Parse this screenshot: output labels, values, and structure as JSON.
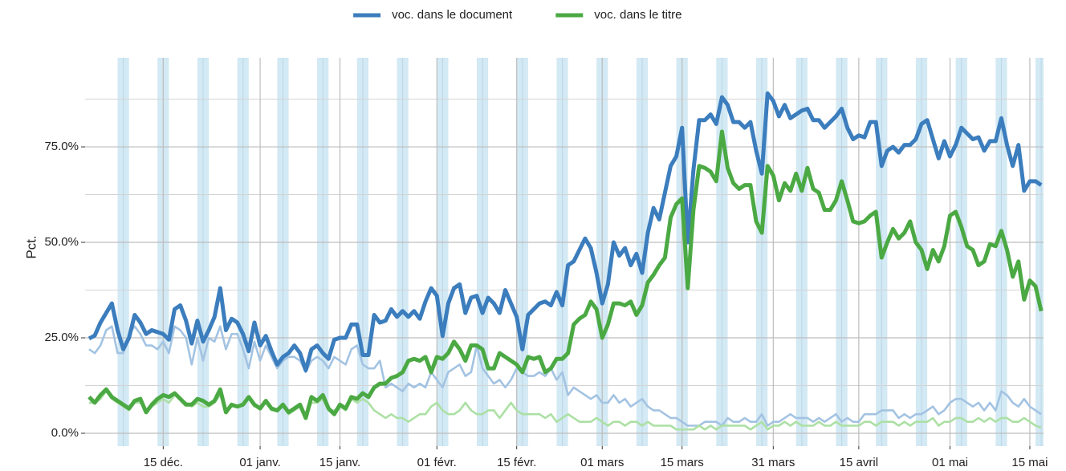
{
  "chart_data": {
    "type": "line",
    "x": [
      1,
      2,
      3,
      4,
      5,
      6,
      7,
      8,
      9,
      10,
      11,
      12,
      13,
      14,
      15,
      16,
      17,
      18,
      19,
      20,
      21,
      22,
      23,
      24,
      25,
      26,
      27,
      28,
      29,
      30,
      31,
      32,
      33,
      34,
      35,
      36,
      37,
      38,
      39,
      40,
      41,
      42,
      43,
      44,
      45,
      46,
      47,
      48,
      49,
      50,
      51,
      52,
      53,
      54,
      55,
      56,
      57,
      58,
      59,
      60,
      61,
      62,
      63,
      64,
      65,
      66,
      67,
      68,
      69,
      70,
      71,
      72,
      73,
      74,
      75,
      76,
      77,
      78,
      79,
      80,
      81,
      82,
      83,
      84,
      85,
      86,
      87,
      88,
      89,
      90,
      91,
      92,
      93,
      94,
      95,
      96,
      97,
      98,
      99,
      100,
      101,
      102,
      103,
      104,
      105,
      106,
      107,
      108,
      109,
      110,
      111,
      112,
      113,
      114,
      115,
      116,
      117,
      118,
      119,
      120,
      121,
      122,
      123,
      124,
      125,
      126,
      127,
      128,
      129,
      130,
      131,
      132,
      133,
      134,
      135,
      136,
      137,
      138,
      139,
      140,
      141,
      142,
      143,
      144,
      145,
      146,
      147,
      148,
      149,
      150,
      151,
      152,
      153,
      154,
      155,
      156,
      157,
      158,
      159,
      160,
      161,
      162,
      163,
      164,
      165,
      166,
      167,
      168
    ],
    "series": [
      {
        "color": "#a3c3e2",
        "values": [
          22,
          21,
          23,
          27,
          28,
          21,
          21,
          26,
          28,
          26,
          23,
          23,
          22,
          24,
          21,
          28,
          27,
          25,
          18,
          25,
          19,
          25,
          24,
          28,
          22,
          26,
          26,
          22,
          17,
          24,
          19,
          23,
          20,
          17,
          19,
          20,
          20,
          19,
          16,
          19,
          20,
          19,
          17,
          20,
          19,
          18,
          22,
          23,
          18,
          17,
          17,
          19,
          12,
          13,
          12,
          11,
          13,
          12,
          13,
          12,
          16,
          14,
          12,
          16,
          17,
          18,
          15,
          16,
          23,
          17,
          15,
          13,
          14,
          12,
          14,
          17,
          16,
          15,
          15,
          16,
          15,
          17,
          14,
          16,
          10,
          12,
          11,
          10,
          9,
          10,
          8,
          8,
          10,
          8,
          9,
          7,
          8,
          9,
          7,
          6,
          6,
          5,
          4,
          4,
          3,
          2,
          2,
          2,
          3,
          3,
          3,
          2,
          4,
          3,
          3,
          4,
          3,
          3,
          5,
          2,
          3,
          3,
          4,
          5,
          4,
          4,
          4,
          3,
          4,
          3,
          4,
          5,
          3,
          4,
          3,
          3,
          5,
          5,
          5,
          6,
          6,
          6,
          4,
          5,
          4,
          5,
          5,
          6,
          7,
          5,
          6,
          8,
          9,
          9,
          8,
          7,
          8,
          6,
          8,
          6,
          11,
          10,
          8,
          7,
          9,
          7,
          6,
          5
        ]
      },
      {
        "color": "#ace0a4",
        "values": [
          8,
          8,
          9,
          11,
          9,
          8,
          7,
          6,
          8,
          8,
          6,
          7,
          8,
          9,
          8,
          10,
          9,
          8,
          7,
          8,
          7,
          7,
          8,
          10,
          6,
          7,
          7,
          8,
          9,
          7,
          7,
          8,
          6,
          6,
          7,
          5,
          6,
          7,
          4,
          8,
          8,
          9,
          6,
          6,
          7,
          6,
          9,
          8,
          9,
          8,
          6,
          5,
          4,
          5,
          4,
          4,
          3,
          4,
          5,
          5,
          7,
          8,
          6,
          5,
          5,
          6,
          8,
          6,
          5,
          5,
          6,
          6,
          4,
          6,
          8,
          6,
          5,
          5,
          5,
          5,
          4,
          5,
          3,
          4,
          5,
          4,
          3,
          3,
          3,
          4,
          3,
          2,
          3,
          3,
          2,
          3,
          3,
          2,
          3,
          2,
          2,
          2,
          2,
          1,
          1,
          1,
          1,
          2,
          1,
          2,
          1,
          2,
          2,
          2,
          2,
          2,
          1,
          2,
          3,
          1,
          2,
          2,
          3,
          2,
          3,
          2,
          2,
          2,
          3,
          2,
          2,
          3,
          2,
          2,
          2,
          2,
          3,
          3,
          2,
          3,
          3,
          3,
          2,
          3,
          2,
          3,
          3,
          3,
          4,
          2,
          3,
          3,
          4,
          4,
          3,
          3,
          4,
          3,
          4,
          3,
          4,
          4,
          3,
          3,
          4,
          3,
          2,
          1.5
        ]
      },
      {
        "name": "voc. dans le document",
        "color": "#3b7dbd",
        "values": [
          24.8,
          25.6,
          29,
          31.5,
          34,
          27,
          22,
          25,
          31,
          29,
          26,
          27,
          26.5,
          26,
          24.5,
          32.5,
          33.5,
          29.5,
          23.5,
          29.5,
          24,
          27,
          30.5,
          38,
          27,
          30,
          29,
          26,
          21.5,
          29,
          23,
          25.5,
          21.5,
          18,
          20,
          21,
          23,
          21,
          16.5,
          22,
          23,
          21,
          19.5,
          24.5,
          25,
          25,
          28.5,
          28.5,
          20.5,
          20.5,
          31,
          29,
          29.5,
          32.5,
          30.5,
          32,
          30.5,
          32,
          30,
          34.5,
          38,
          36,
          25.5,
          34,
          38,
          39,
          31.5,
          35.5,
          36,
          31.5,
          35.5,
          34,
          31.5,
          37.5,
          34,
          30.5,
          22,
          31,
          32.5,
          34,
          34.5,
          33.5,
          37,
          33.5,
          44,
          45,
          48,
          51,
          48.5,
          42,
          34,
          39,
          50,
          46.5,
          48.5,
          44,
          47,
          42,
          52.5,
          59,
          56,
          63,
          70,
          72.5,
          80,
          50,
          69,
          82,
          82,
          83.5,
          81,
          88,
          86,
          81.5,
          81.5,
          80,
          81.5,
          74,
          68,
          89,
          87,
          83,
          86,
          82.5,
          83.5,
          84.5,
          85,
          82,
          82,
          80,
          81.5,
          83,
          85,
          80,
          77,
          78,
          77.5,
          81.5,
          81.5,
          70,
          74,
          75,
          73.5,
          75.5,
          75.5,
          77,
          81,
          82,
          77,
          72,
          76.5,
          72.5,
          75.5,
          80,
          78.5,
          77,
          77.5,
          74,
          76.5,
          76.5,
          82.5,
          75.5,
          70,
          75.5,
          63.5,
          66,
          66,
          65
        ]
      },
      {
        "name": "voc. dans le titre",
        "color": "#4ba943",
        "values": [
          9.5,
          8,
          10,
          11.5,
          9.5,
          8.5,
          7.5,
          6.5,
          8.5,
          9,
          5.5,
          7.5,
          9,
          10,
          9.5,
          10.5,
          9,
          7.5,
          7.5,
          9,
          8.5,
          7.5,
          8.5,
          11.5,
          5.5,
          7.5,
          7,
          7.5,
          9.5,
          7.5,
          6.5,
          8.5,
          6.5,
          6,
          7.5,
          5.5,
          6.5,
          7.5,
          4,
          9.5,
          8.5,
          10,
          6.5,
          5,
          7.5,
          6.5,
          9.5,
          9,
          10.5,
          9.5,
          12,
          13,
          13,
          14.5,
          15,
          16,
          19,
          19.5,
          19,
          20,
          16,
          20,
          19.5,
          21,
          24,
          22,
          19,
          23,
          23,
          22,
          17,
          17,
          21,
          20,
          19,
          18,
          16,
          20,
          19.5,
          20,
          16,
          17,
          19.5,
          19.5,
          21,
          28.5,
          30,
          31,
          34.5,
          32.5,
          25,
          28.5,
          34,
          34,
          33.5,
          34.5,
          31,
          33.5,
          39.5,
          41.5,
          44,
          46,
          56.5,
          60,
          61.5,
          38,
          58.5,
          70,
          69.5,
          68.5,
          66,
          79,
          69.5,
          65.5,
          64,
          65,
          65,
          55.5,
          52.5,
          70,
          67.5,
          61,
          65.5,
          63.5,
          68,
          63.5,
          69.5,
          64,
          63,
          58.5,
          58.5,
          61,
          66,
          61,
          55.5,
          55,
          55.5,
          57,
          58,
          46,
          50,
          53.5,
          51,
          52.5,
          55.5,
          50,
          48,
          43,
          48,
          45,
          49,
          57,
          58,
          54,
          49,
          48,
          44,
          45,
          49.5,
          49,
          53,
          48,
          41,
          45,
          35,
          40,
          38.5,
          32
        ]
      }
    ],
    "xlim": [
      0.3,
      168.4
    ],
    "xticks": [
      {
        "value": 14,
        "label": "15 déc."
      },
      {
        "value": 31,
        "label": "01 janv."
      },
      {
        "value": 45,
        "label": "15 janv."
      },
      {
        "value": 62,
        "label": "01 févr."
      },
      {
        "value": 76,
        "label": "15 févr."
      },
      {
        "value": 91,
        "label": "01 mars"
      },
      {
        "value": 105,
        "label": "15 mars"
      },
      {
        "value": 121,
        "label": "31 mars"
      },
      {
        "value": 136,
        "label": "15 avril"
      },
      {
        "value": 152,
        "label": "01 mai"
      },
      {
        "value": 166,
        "label": "15 mai"
      }
    ],
    "ylim": [
      -3.15,
      97.7
    ],
    "yticks": [
      {
        "value": 0,
        "label": "0.0%"
      },
      {
        "value": 25,
        "label": "25.0%"
      },
      {
        "value": 50,
        "label": "50.0%"
      },
      {
        "value": 75,
        "label": "75.0%"
      }
    ],
    "yminor": [
      12.5,
      37.5,
      62.5,
      87.5
    ],
    "ylabel": "Pct.",
    "shaded": [
      [
        6,
        8
      ],
      [
        13,
        15
      ],
      [
        20,
        22
      ],
      [
        27,
        29
      ],
      [
        34,
        36
      ],
      [
        41,
        43
      ],
      [
        48,
        50
      ],
      [
        55,
        57
      ],
      [
        62,
        64
      ],
      [
        69,
        71
      ],
      [
        76,
        78
      ],
      [
        83,
        85
      ],
      [
        90,
        92
      ],
      [
        97,
        99
      ],
      [
        104,
        106
      ],
      [
        111,
        113
      ],
      [
        118,
        120
      ],
      [
        125,
        127
      ],
      [
        132,
        134
      ],
      [
        139,
        141
      ],
      [
        146,
        148
      ],
      [
        153,
        155
      ],
      [
        160,
        162
      ],
      [
        167,
        169
      ]
    ],
    "shade_color": "#d3e9f4",
    "grid": true,
    "legend": "top"
  }
}
